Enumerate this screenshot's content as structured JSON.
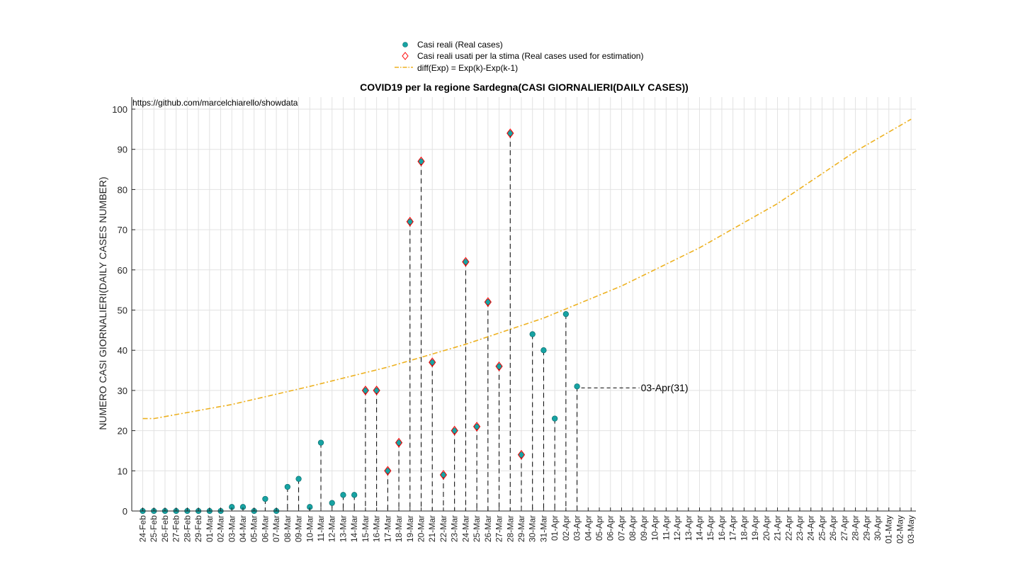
{
  "chart_data": {
    "type": "scatter",
    "title": "COVID19 per la regione Sardegna(CASI GIORNALIERI(DAILY CASES))",
    "ylabel": "NUMERO CASI GIORNALIERI(DAILY CASES NUMBER)",
    "xlabel": "",
    "source_note": "https://github.com/marcelchiarello/showdata",
    "ylim": [
      0,
      103
    ],
    "yticks": [
      0,
      10,
      20,
      30,
      40,
      50,
      60,
      70,
      80,
      90,
      100
    ],
    "grid": true,
    "legend_position": "top-center",
    "x_ticks": [
      "24-Feb",
      "25-Feb",
      "26-Feb",
      "27-Feb",
      "28-Feb",
      "29-Feb",
      "01-Mar",
      "02-Mar",
      "03-Mar",
      "04-Mar",
      "05-Mar",
      "06-Mar",
      "07-Mar",
      "08-Mar",
      "09-Mar",
      "10-Mar",
      "11-Mar",
      "12-Mar",
      "13-Mar",
      "14-Mar",
      "15-Mar",
      "16-Mar",
      "17-Mar",
      "18-Mar",
      "19-Mar",
      "20-Mar",
      "21-Mar",
      "22-Mar",
      "23-Mar",
      "24-Mar",
      "25-Mar",
      "26-Mar",
      "27-Mar",
      "28-Mar",
      "29-Mar",
      "30-Mar",
      "31-Mar",
      "01-Apr",
      "02-Apr",
      "03-Apr",
      "04-Apr",
      "05-Apr",
      "06-Apr",
      "07-Apr",
      "08-Apr",
      "09-Apr",
      "10-Apr",
      "11-Apr",
      "12-Apr",
      "13-Apr",
      "14-Apr",
      "15-Apr",
      "16-Apr",
      "17-Apr",
      "18-Apr",
      "19-Apr",
      "20-Apr",
      "21-Apr",
      "22-Apr",
      "23-Apr",
      "24-Apr",
      "25-Apr",
      "26-Apr",
      "27-Apr",
      "28-Apr",
      "29-Apr",
      "30-Apr",
      "01-May",
      "02-May",
      "03-May"
    ],
    "series": [
      {
        "name": "Casi reali (Real cases)",
        "marker": "circle",
        "color": "#17a3a3",
        "dates": [
          "24-Feb",
          "25-Feb",
          "26-Feb",
          "27-Feb",
          "28-Feb",
          "29-Feb",
          "01-Mar",
          "02-Mar",
          "03-Mar",
          "04-Mar",
          "05-Mar",
          "06-Mar",
          "07-Mar",
          "08-Mar",
          "09-Mar",
          "10-Mar",
          "11-Mar",
          "12-Mar",
          "13-Mar",
          "14-Mar",
          "15-Mar",
          "16-Mar",
          "17-Mar",
          "18-Mar",
          "19-Mar",
          "20-Mar",
          "21-Mar",
          "22-Mar",
          "23-Mar",
          "24-Mar",
          "25-Mar",
          "26-Mar",
          "27-Mar",
          "28-Mar",
          "29-Mar",
          "30-Mar",
          "31-Mar",
          "01-Apr",
          "02-Apr",
          "03-Apr"
        ],
        "values": [
          0,
          0,
          0,
          0,
          0,
          0,
          0,
          0,
          1,
          1,
          0,
          3,
          0,
          6,
          8,
          1,
          17,
          2,
          4,
          4,
          30,
          30,
          10,
          17,
          72,
          87,
          37,
          9,
          20,
          62,
          21,
          52,
          36,
          94,
          14,
          44,
          40,
          23,
          49,
          31
        ]
      },
      {
        "name": "Casi reali usati per la stima (Real cases used for estimation)",
        "marker": "diamond",
        "color": "#ff0000",
        "dates": [
          "15-Mar",
          "16-Mar",
          "17-Mar",
          "18-Mar",
          "19-Mar",
          "20-Mar",
          "21-Mar",
          "22-Mar",
          "23-Mar",
          "24-Mar",
          "25-Mar",
          "26-Mar",
          "27-Mar",
          "28-Mar",
          "29-Mar"
        ],
        "values": [
          30,
          30,
          10,
          17,
          72,
          87,
          37,
          9,
          20,
          62,
          21,
          52,
          36,
          94,
          14
        ]
      },
      {
        "name": "diff(Exp) = Exp(k)-Exp(k-1)",
        "marker": "dashdot-line",
        "color": "#edb120",
        "dates": [
          "24-Feb",
          "25-Feb",
          "03-Mar",
          "10-Mar",
          "17-Mar",
          "24-Mar",
          "31-Mar",
          "07-Apr",
          "14-Apr",
          "21-Apr",
          "28-Apr",
          "03-May"
        ],
        "values": [
          23,
          23,
          26.5,
          31,
          35.8,
          41.5,
          48,
          56,
          65.5,
          76.5,
          89.5,
          97.5
        ]
      }
    ],
    "stems_for": [
      "10-Mar",
      "11-Mar",
      "12-Mar",
      "13-Mar",
      "14-Mar",
      "15-Mar",
      "16-Mar",
      "17-Mar",
      "18-Mar",
      "19-Mar",
      "20-Mar",
      "21-Mar",
      "22-Mar",
      "23-Mar",
      "24-Mar",
      "25-Mar",
      "26-Mar",
      "27-Mar",
      "28-Mar",
      "29-Mar",
      "30-Mar",
      "31-Mar",
      "01-Apr",
      "02-Apr",
      "03-Apr",
      "06-Mar",
      "08-Mar",
      "09-Mar"
    ],
    "annotation": {
      "date": "03-Apr",
      "value": 31,
      "text": "03-Apr(31)"
    }
  }
}
